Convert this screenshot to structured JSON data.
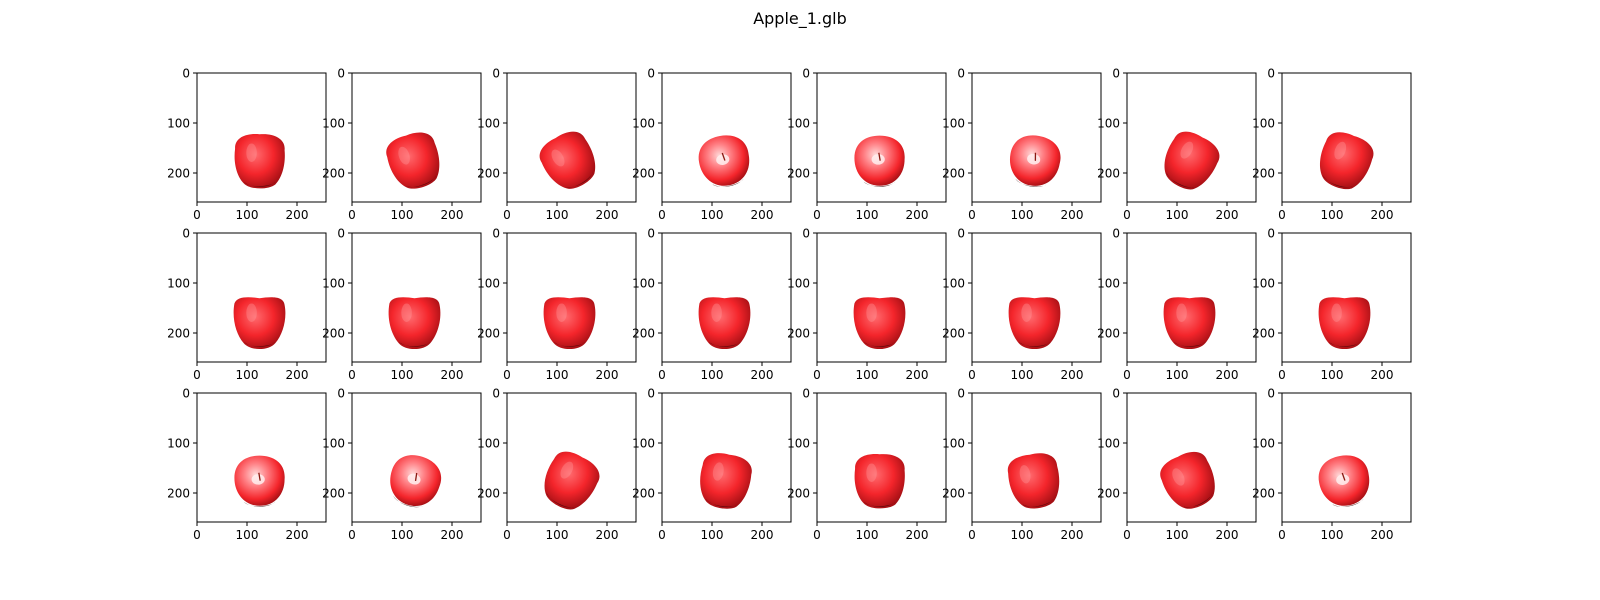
{
  "figure": {
    "title": "Apple_1.glb",
    "rows": 3,
    "cols": 8,
    "x_ticks": [
      "0",
      "100",
      "200"
    ],
    "y_ticks": [
      "0",
      "100",
      "200"
    ],
    "colors": {
      "apple_main": "#f4252b",
      "apple_dark": "#a40f14",
      "apple_highlight": "#ffd8d8",
      "axes": "#000000",
      "background": "#ffffff"
    },
    "views": [
      {
        "view": "side",
        "tilt": 0
      },
      {
        "view": "side",
        "tilt": -18
      },
      {
        "view": "side",
        "tilt": -30
      },
      {
        "view": "top",
        "tilt": -10
      },
      {
        "view": "top",
        "tilt": 0
      },
      {
        "view": "top",
        "tilt": 10
      },
      {
        "view": "side",
        "tilt": 28
      },
      {
        "view": "side",
        "tilt": 20
      },
      {
        "view": "front",
        "tilt": 0
      },
      {
        "view": "front",
        "tilt": 0
      },
      {
        "view": "front",
        "tilt": 0
      },
      {
        "view": "front",
        "tilt": 0
      },
      {
        "view": "front",
        "tilt": 0
      },
      {
        "view": "front",
        "tilt": 0
      },
      {
        "view": "front",
        "tilt": 0
      },
      {
        "view": "front",
        "tilt": 0
      },
      {
        "view": "top",
        "tilt": 0
      },
      {
        "view": "top",
        "tilt": 18
      },
      {
        "view": "side",
        "tilt": 28
      },
      {
        "view": "side",
        "tilt": 10
      },
      {
        "view": "side",
        "tilt": 0
      },
      {
        "view": "side",
        "tilt": -10
      },
      {
        "view": "side",
        "tilt": -25
      },
      {
        "view": "top",
        "tilt": -10
      }
    ]
  }
}
